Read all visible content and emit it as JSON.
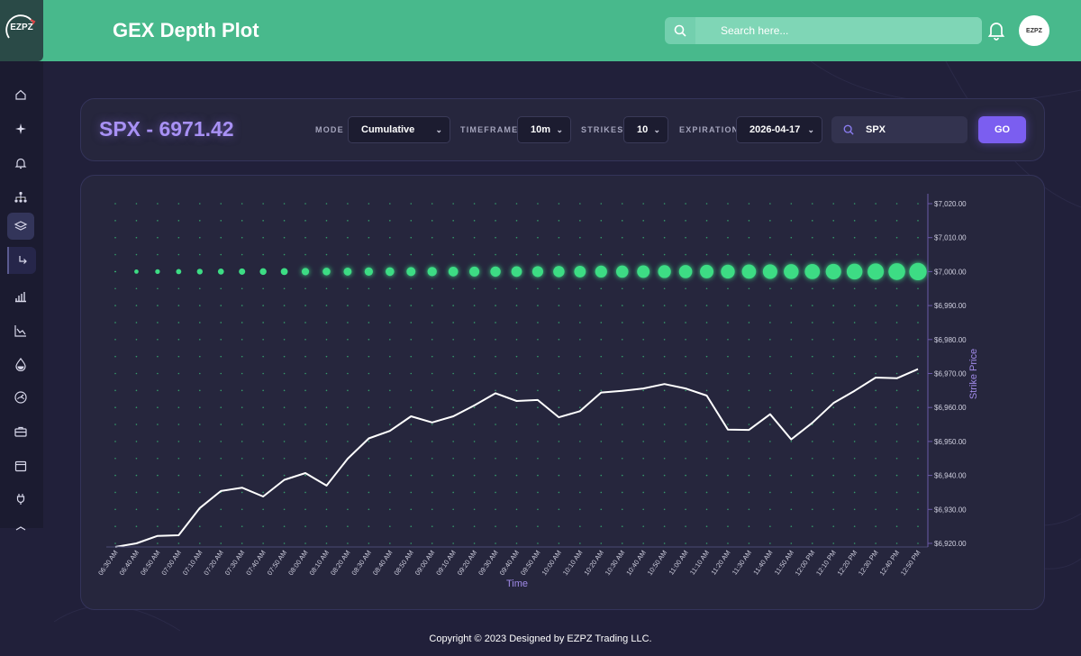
{
  "header": {
    "title": "GEX Depth Plot",
    "search_placeholder": "Search here...",
    "logo_text": "EZPZ",
    "avatar_text": "EZPZ"
  },
  "sidebar": {
    "items": [
      {
        "icon": "home-icon"
      },
      {
        "icon": "sparkle-icon"
      },
      {
        "icon": "bell-icon"
      },
      {
        "icon": "hierarchy-icon"
      },
      {
        "icon": "layers-icon",
        "active": true
      },
      {
        "icon": "sub-arrow-icon",
        "sub": true
      },
      {
        "icon": "bar-chart-icon"
      },
      {
        "icon": "trend-chart-icon"
      },
      {
        "icon": "drop-icon"
      },
      {
        "icon": "gauge-icon"
      },
      {
        "icon": "briefcase-icon"
      },
      {
        "icon": "calendar-icon"
      },
      {
        "icon": "plug-icon"
      },
      {
        "icon": "unknown-icon"
      }
    ]
  },
  "controls": {
    "ticker": "SPX - 6971.42",
    "mode_label": "MODE",
    "mode_value": "Cumulative",
    "timeframe_label": "TIMEFRAME",
    "timeframe_value": "10m",
    "strikes_label": "STRIKES",
    "strikes_value": "10",
    "expiration_label": "EXPIRATION",
    "expiration_value": "2026-04-17",
    "symbol_value": "SPX",
    "go_label": "GO"
  },
  "colors": {
    "header": "#48b98c",
    "accent": "#7b5ef0",
    "ticker": "#a891f5",
    "bubble": "#3ddc84",
    "line": "#ffffff"
  },
  "chart_data": {
    "type": "scatter",
    "xlabel": "Time",
    "ylabel": "Strike Price",
    "x": [
      "06:30 AM",
      "06:40 AM",
      "06:50 AM",
      "07:00 AM",
      "07:10 AM",
      "07:20 AM",
      "07:30 AM",
      "07:40 AM",
      "07:50 AM",
      "08:00 AM",
      "08:10 AM",
      "08:20 AM",
      "08:30 AM",
      "08:40 AM",
      "08:50 AM",
      "09:00 AM",
      "09:10 AM",
      "09:20 AM",
      "09:30 AM",
      "09:40 AM",
      "09:50 AM",
      "10:00 AM",
      "10:10 AM",
      "10:20 AM",
      "10:30 AM",
      "10:40 AM",
      "10:50 AM",
      "11:00 AM",
      "11:10 AM",
      "11:20 AM",
      "11:30 AM",
      "11:40 AM",
      "11:50 AM",
      "12:00 PM",
      "12:10 PM",
      "12:20 PM",
      "12:30 PM",
      "12:40 PM",
      "12:50 PM"
    ],
    "yticks": [
      "$6,920.00",
      "$6,930.00",
      "$6,940.00",
      "$6,950.00",
      "$6,960.00",
      "$6,970.00",
      "$6,980.00",
      "$6,990.00",
      "$7,000.00",
      "$7,010.00",
      "$7,020.00"
    ],
    "ylim": [
      6920,
      7020
    ],
    "strikes": [
      6920,
      6925,
      6930,
      6935,
      6940,
      6945,
      6950,
      6955,
      6960,
      6965,
      6970,
      6975,
      6980,
      6985,
      6990,
      6995,
      7000,
      7005,
      7010,
      7015,
      7020
    ],
    "price_series": {
      "name": "SPX",
      "values": [
        6916.5,
        6920,
        6922.2,
        6922.4,
        6930.4,
        6935.4,
        6936.4,
        6933.8,
        6938.7,
        6940.7,
        6937,
        6944.9,
        6950.9,
        6953.1,
        6957.4,
        6955.6,
        6957.4,
        6960.6,
        6964.2,
        6961.9,
        6962.2,
        6957.1,
        6958.9,
        6964.4,
        6964.9,
        6965.6,
        6966.9,
        6965.6,
        6963.5,
        6953.5,
        6953.4,
        6958,
        6950.6,
        6955.5,
        6961.3,
        6964.9,
        6968.8,
        6968.6,
        6971.3
      ]
    },
    "gex_strike": 7000,
    "gex_values": [
      0,
      0.13,
      0.16,
      0.19,
      0.22,
      0.24,
      0.26,
      0.28,
      0.3,
      0.32,
      0.34,
      0.36,
      0.38,
      0.4,
      0.42,
      0.44,
      0.46,
      0.48,
      0.5,
      0.52,
      0.54,
      0.56,
      0.58,
      0.6,
      0.62,
      0.64,
      0.66,
      0.68,
      0.7,
      0.72,
      0.74,
      0.76,
      0.78,
      0.8,
      0.82,
      0.84,
      0.87,
      0.9,
      0.94
    ],
    "grid": false,
    "legend": "none"
  },
  "footer": {
    "text": "Copyright © 2023 Designed by EZPZ Trading LLC."
  }
}
